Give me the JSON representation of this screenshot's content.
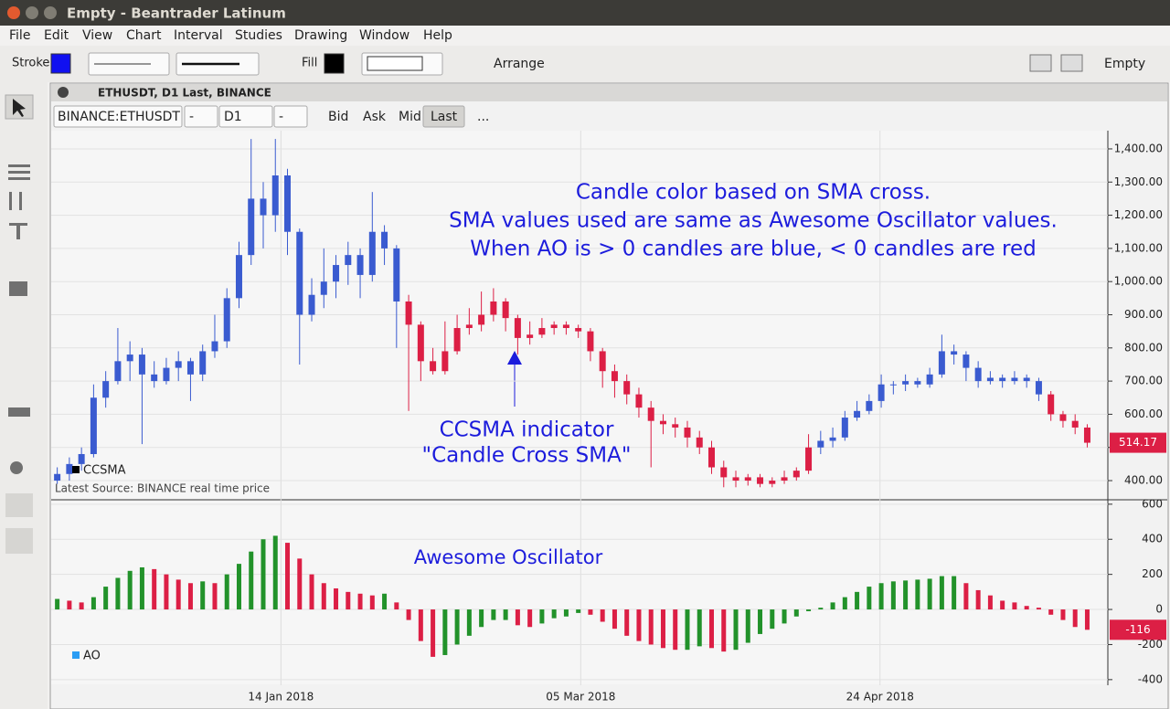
{
  "window": {
    "title": "Empty - Beantrader Latinum"
  },
  "menu": [
    "File",
    "Edit",
    "View",
    "Chart",
    "Interval",
    "Studies",
    "Drawing",
    "Window",
    "Help"
  ],
  "toolbar": {
    "stroke": "Stroke",
    "fill": "Fill",
    "arrange": "Arrange",
    "layout": "Empty"
  },
  "chart_window": {
    "title": "ETHUSDT, D1 Last, BINANCE",
    "symbol": "BINANCE:ETHUSDT",
    "fields": [
      "-",
      "D1",
      "-"
    ],
    "price_buttons": [
      "Bid",
      "Ask",
      "Mid",
      "Last"
    ],
    "more": "..."
  },
  "x_axis": {
    "xlim": [
      -0.5,
      86.7
    ],
    "xticks": [
      {
        "value": 18.46,
        "label": "14 Jan 2018"
      },
      {
        "value": 43.2,
        "label": "05 Mar 2018"
      },
      {
        "value": 67.9,
        "label": "24 Apr 2018"
      }
    ]
  },
  "chart_data": [
    {
      "type": "candlestick",
      "name": "CCSMA",
      "source": "Latest Source: BINANCE real time price",
      "annotations": [
        "Candle color based on SMA cross.",
        "SMA values used are same as Awesome Oscillator values.",
        "When AO is > 0 candles are blue, < 0 candles are red"
      ],
      "indicator_note": [
        "CCSMA indicator",
        "\"Candle Cross SMA\""
      ],
      "up_color": "#3a5bd0",
      "down_color": "#dc1f45",
      "ylim": [
        345,
        1455
      ],
      "yticks": [
        {
          "value": 400,
          "label": "400.00"
        },
        {
          "value": 500,
          "label": "500.00"
        },
        {
          "value": 600,
          "label": "600.00"
        },
        {
          "value": 700,
          "label": "700.00"
        },
        {
          "value": 800,
          "label": "800.00"
        },
        {
          "value": 900,
          "label": "900.00"
        },
        {
          "value": 1000,
          "label": "1,000.00"
        },
        {
          "value": 1100,
          "label": "1,100.00"
        },
        {
          "value": 1200,
          "label": "1,200.00"
        },
        {
          "value": 1300,
          "label": "1,300.00"
        },
        {
          "value": 1400,
          "label": "1,400.00"
        }
      ],
      "candles": [
        [
          400,
          440,
          390,
          420
        ],
        [
          420,
          470,
          400,
          450
        ],
        [
          450,
          500,
          430,
          480
        ],
        [
          480,
          690,
          470,
          650
        ],
        [
          650,
          730,
          620,
          700
        ],
        [
          700,
          860,
          690,
          760
        ],
        [
          760,
          820,
          700,
          780
        ],
        [
          780,
          800,
          510,
          720
        ],
        [
          720,
          760,
          680,
          700
        ],
        [
          700,
          770,
          690,
          740
        ],
        [
          740,
          790,
          700,
          760
        ],
        [
          760,
          770,
          640,
          720
        ],
        [
          720,
          810,
          700,
          790
        ],
        [
          790,
          900,
          770,
          820
        ],
        [
          820,
          980,
          800,
          950
        ],
        [
          950,
          1120,
          920,
          1080
        ],
        [
          1080,
          1430,
          1050,
          1250
        ],
        [
          1250,
          1300,
          1100,
          1200
        ],
        [
          1200,
          1430,
          1150,
          1320
        ],
        [
          1320,
          1340,
          1080,
          1150
        ],
        [
          1150,
          1160,
          750,
          900
        ],
        [
          900,
          1010,
          880,
          960
        ],
        [
          960,
          1100,
          920,
          1000
        ],
        [
          1000,
          1080,
          950,
          1050
        ],
        [
          1050,
          1120,
          990,
          1080
        ],
        [
          1080,
          1100,
          950,
          1020
        ],
        [
          1020,
          1270,
          1000,
          1150
        ],
        [
          1150,
          1170,
          1050,
          1100
        ],
        [
          1100,
          1110,
          800,
          940
        ],
        [
          940,
          960,
          610,
          870
        ],
        [
          870,
          880,
          700,
          760
        ],
        [
          760,
          800,
          720,
          730
        ],
        [
          730,
          880,
          720,
          790
        ],
        [
          790,
          900,
          780,
          860
        ],
        [
          860,
          920,
          840,
          870
        ],
        [
          870,
          970,
          850,
          900
        ],
        [
          900,
          980,
          880,
          940
        ],
        [
          940,
          950,
          850,
          890
        ],
        [
          890,
          900,
          780,
          830
        ],
        [
          830,
          880,
          810,
          840
        ],
        [
          840,
          890,
          830,
          860
        ],
        [
          860,
          880,
          840,
          870
        ],
        [
          870,
          880,
          840,
          860
        ],
        [
          860,
          870,
          830,
          850
        ],
        [
          850,
          860,
          760,
          790
        ],
        [
          790,
          800,
          680,
          730
        ],
        [
          730,
          750,
          650,
          700
        ],
        [
          700,
          720,
          630,
          660
        ],
        [
          660,
          680,
          590,
          620
        ],
        [
          620,
          640,
          440,
          580
        ],
        [
          580,
          600,
          540,
          570
        ],
        [
          570,
          590,
          530,
          560
        ],
        [
          560,
          580,
          500,
          530
        ],
        [
          530,
          550,
          480,
          500
        ],
        [
          500,
          520,
          420,
          440
        ],
        [
          440,
          460,
          380,
          410
        ],
        [
          410,
          430,
          380,
          400
        ],
        [
          400,
          420,
          385,
          410
        ],
        [
          410,
          420,
          380,
          390
        ],
        [
          390,
          410,
          380,
          400
        ],
        [
          400,
          430,
          390,
          410
        ],
        [
          410,
          440,
          400,
          430
        ],
        [
          430,
          540,
          420,
          500
        ],
        [
          500,
          550,
          480,
          520
        ],
        [
          520,
          560,
          500,
          530
        ],
        [
          530,
          610,
          520,
          590
        ],
        [
          590,
          640,
          580,
          610
        ],
        [
          610,
          660,
          600,
          640
        ],
        [
          640,
          720,
          620,
          690
        ],
        [
          690,
          700,
          660,
          690
        ],
        [
          690,
          720,
          670,
          700
        ],
        [
          700,
          710,
          680,
          690
        ],
        [
          690,
          740,
          680,
          720
        ],
        [
          720,
          840,
          710,
          790
        ],
        [
          790,
          810,
          750,
          780
        ],
        [
          780,
          790,
          700,
          740
        ],
        [
          740,
          760,
          680,
          700
        ],
        [
          700,
          730,
          690,
          710
        ],
        [
          710,
          720,
          680,
          700
        ],
        [
          700,
          730,
          690,
          710
        ],
        [
          710,
          720,
          680,
          700
        ],
        [
          700,
          710,
          640,
          660
        ],
        [
          660,
          670,
          580,
          600
        ],
        [
          600,
          610,
          560,
          580
        ],
        [
          580,
          600,
          540,
          560
        ],
        [
          560,
          570,
          500,
          514.17
        ]
      ]
    },
    {
      "type": "bar",
      "name": "AO",
      "title": "Awesome Oscillator",
      "up_color": "#22922a",
      "down_color": "#dc1f45",
      "legend_color": "#2a9df4",
      "ylim": [
        -432,
        620
      ],
      "yticks": [
        600,
        400,
        200,
        0,
        -200,
        -400
      ],
      "values": [
        60,
        50,
        40,
        70,
        130,
        180,
        220,
        240,
        230,
        200,
        170,
        150,
        160,
        150,
        200,
        260,
        330,
        400,
        420,
        380,
        290,
        200,
        150,
        120,
        100,
        90,
        80,
        90,
        40,
        -60,
        -180,
        -270,
        -260,
        -200,
        -150,
        -100,
        -60,
        -60,
        -90,
        -100,
        -80,
        -50,
        -40,
        -20,
        -30,
        -70,
        -110,
        -150,
        -180,
        -200,
        -220,
        -230,
        -230,
        -210,
        -220,
        -240,
        -230,
        -190,
        -140,
        -110,
        -80,
        -40,
        -10,
        10,
        40,
        70,
        100,
        130,
        150,
        160,
        165,
        170,
        175,
        190,
        190,
        150,
        110,
        80,
        50,
        40,
        20,
        10,
        -30,
        -60,
        -100,
        -116
      ]
    }
  ]
}
